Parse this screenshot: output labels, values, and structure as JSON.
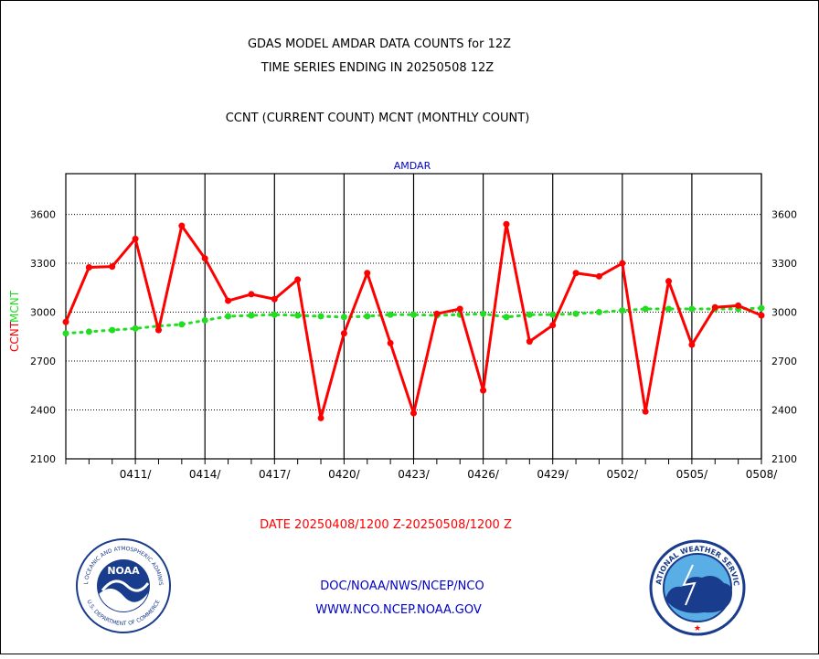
{
  "header": {
    "line1": "GDAS MODEL AMDAR DATA COUNTS for 12Z",
    "line2": "TIME SERIES ENDING IN 20250508 12Z",
    "line3": "CCNT (CURRENT COUNT) MCNT (MONTHLY COUNT)"
  },
  "footer": {
    "date_range": "DATE 20250408/1200 Z-20250508/1200 Z",
    "org_path": "DOC/NOAA/NWS/NCEP/NCO",
    "website": "WWW.NCO.NCEP.NOAA.GOV"
  },
  "logos": {
    "noaa_text": "NOAA",
    "noaa_ring_top": "NATIONAL OCEANIC AND ATMOSPHERIC ADMINISTRATION",
    "noaa_ring_bottom": "U.S. DEPARTMENT OF COMMERCE",
    "nws_ring_top": "NATIONAL WEATHER SERVICE"
  },
  "chart_data": {
    "type": "line",
    "title": "AMDAR",
    "ylabel_left": [
      "CCNT",
      "MCNT"
    ],
    "ylim": [
      2100,
      3850
    ],
    "yticks": [
      2100,
      2400,
      2700,
      3000,
      3300,
      3600
    ],
    "xticks": [
      "0411/",
      "0414/",
      "0417/",
      "0420/",
      "0423/",
      "0426/",
      "0429/",
      "0502/",
      "0505/",
      "0508/"
    ],
    "x_start": "2025-04-08 12Z",
    "x_end": "2025-05-08 12Z",
    "grid": true,
    "colors": {
      "ccnt": "#ff0000",
      "mcnt": "#22dd22",
      "axis": "#000000",
      "title": "#0000cc",
      "footer_red": "#ff0000",
      "footer_blue": "#0000cc"
    },
    "series": [
      {
        "name": "CCNT",
        "style": "solid",
        "values": [
          2940,
          3275,
          3280,
          3450,
          2890,
          3530,
          3330,
          3070,
          3110,
          3080,
          3200,
          2350,
          2870,
          3240,
          2810,
          2380,
          2990,
          3020,
          2520,
          3540,
          2820,
          2920,
          3240,
          3220,
          3300,
          2390,
          3190,
          2800,
          3030,
          3040,
          2980
        ]
      },
      {
        "name": "MCNT",
        "style": "dotted",
        "values": [
          2870,
          2880,
          2890,
          2900,
          2915,
          2925,
          2950,
          2975,
          2980,
          2985,
          2980,
          2975,
          2970,
          2975,
          2985,
          2985,
          2980,
          2985,
          2990,
          2970,
          2985,
          2985,
          2990,
          3000,
          3010,
          3020,
          3020,
          3020,
          3020,
          3020,
          3025
        ]
      }
    ]
  }
}
